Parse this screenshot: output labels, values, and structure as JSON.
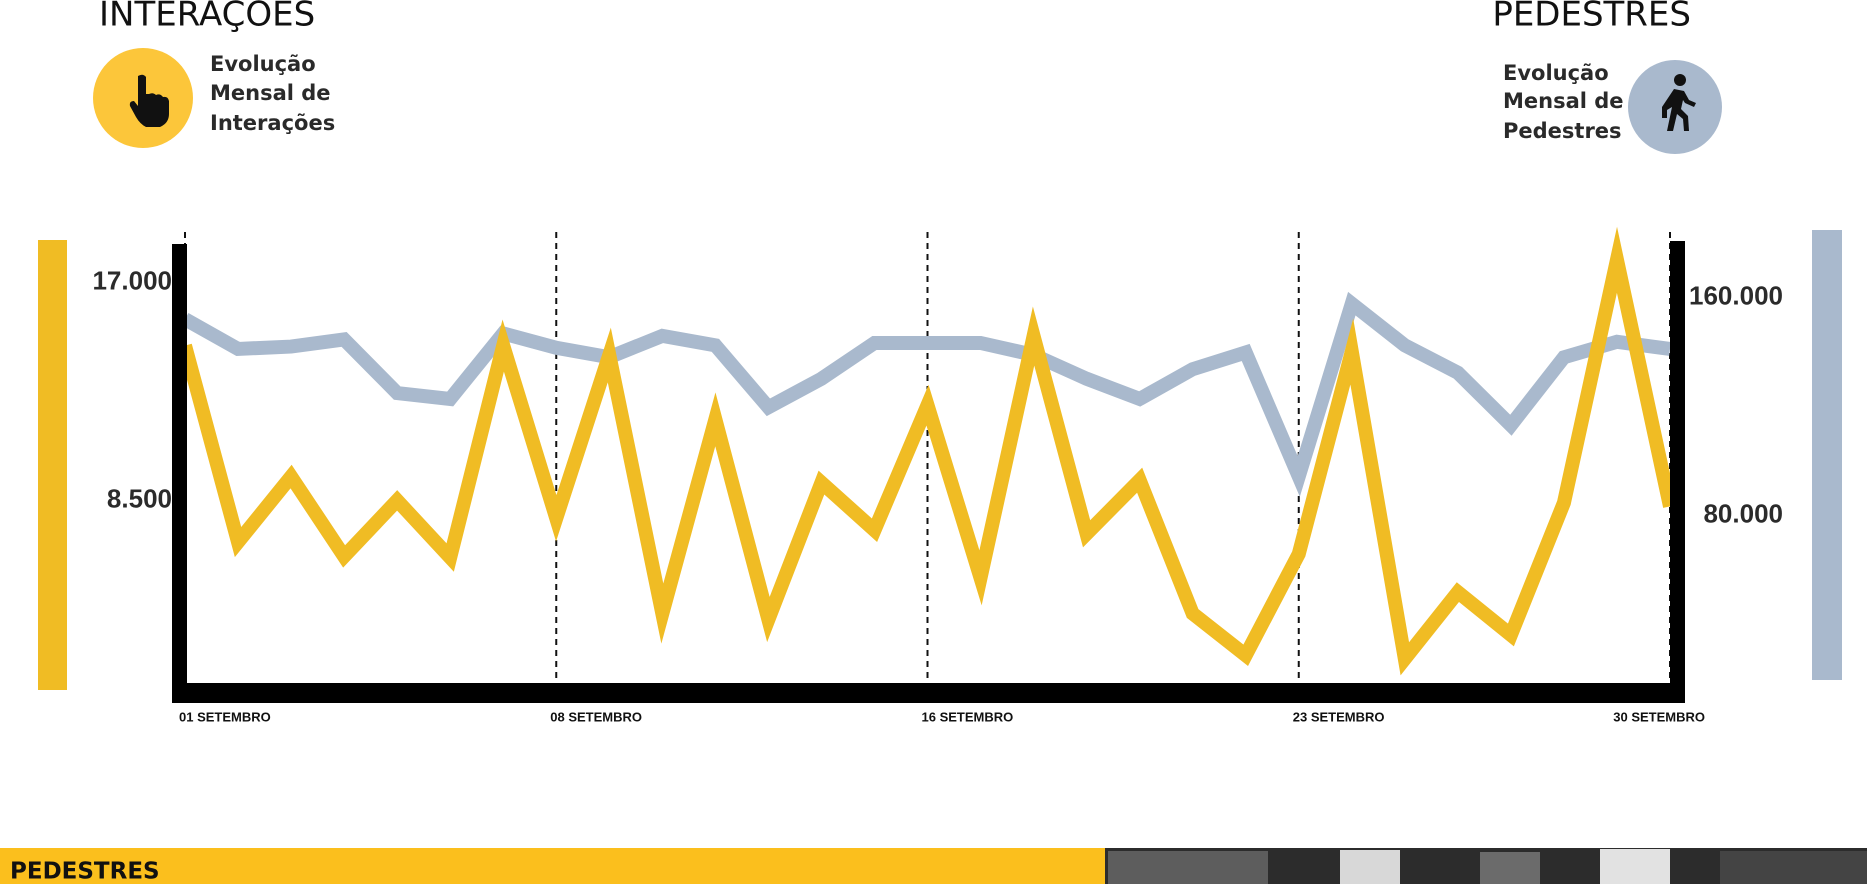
{
  "header": {
    "left_title": "INTERAÇÕES",
    "left_subtitle": [
      "Evolução",
      "Mensal de",
      "Interações"
    ],
    "right_title": "PEDESTRES",
    "right_subtitle": [
      "Evolução",
      "Mensal de",
      "Pedestres"
    ]
  },
  "chart_data": {
    "type": "line",
    "categories": [
      "01 SETEMBRO",
      null,
      null,
      null,
      null,
      null,
      null,
      "08 SETEMBRO",
      null,
      null,
      null,
      null,
      null,
      null,
      "16 SETEMBRO",
      null,
      null,
      null,
      null,
      null,
      null,
      "23 SETEMBRO",
      null,
      null,
      null,
      null,
      null,
      null,
      "30 SETEMBRO"
    ],
    "series": [
      {
        "name": "Interações",
        "color": "#f0bc24",
        "values": [
          14540,
          6874,
          9430,
          6316,
          8500,
          6270,
          14540,
          7803,
          14170,
          4087,
          11660,
          3855,
          9196,
          7338,
          12216,
          5480,
          14910,
          7199,
          9289,
          4087,
          2461,
          6409,
          14306,
          2322,
          4923,
          3251,
          8407,
          17883,
          8267
        ]
      },
      {
        "name": "Pedestres",
        "color": "#a9b9cd",
        "axis": "y2",
        "values": [
          152130,
          141200,
          142070,
          144700,
          125020,
          122840,
          146880,
          141640,
          138140,
          146010,
          142510,
          119780,
          130270,
          143390,
          143390,
          143390,
          139010,
          130270,
          122840,
          133770,
          139890,
          94420,
          157810,
          142510,
          132460,
          113220,
          138140,
          143820,
          141200
        ]
      }
    ],
    "ylim": [
      1300,
      18500
    ],
    "yticks": [
      {
        "value": 8500,
        "label": "8.500"
      },
      {
        "value": 17000,
        "label": "17.000"
      }
    ],
    "y2lim": [
      17900,
      179700
    ],
    "y2ticks": [
      {
        "value": 80000,
        "label": "80.000"
      },
      {
        "value": 160000,
        "label": "160.000"
      }
    ],
    "grid": true
  },
  "section_bar": {
    "title": "PEDESTRES"
  }
}
